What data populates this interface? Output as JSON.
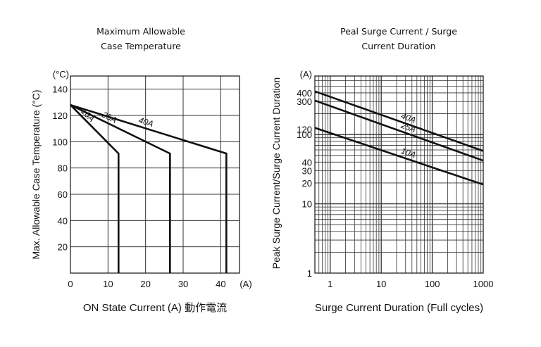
{
  "charts": [
    {
      "title_line1": "Maximum Allowable",
      "title_line2": "Case Temperature",
      "ylabel": "Max. Allowable Case Temperature (°C)",
      "xlabel": "ON State Current (A)  動作電流",
      "y_unit": "(°C)",
      "x_unit": "(A)"
    },
    {
      "title_line1": "Peal Surge Current / Surge",
      "title_line2": "Current Duration",
      "ylabel": "Peak Surge Current/Surge Current Duration",
      "xlabel": "Surge Current Duration (Full cycles)",
      "y_unit": "(A)"
    }
  ],
  "chart_data": [
    {
      "type": "line",
      "title": "Maximum Allowable Case Temperature",
      "xlabel": "ON State Current (A)  動作電流",
      "ylabel": "Max. Allowable Case Temperature (°C)",
      "xlim": [
        0,
        45
      ],
      "ylim": [
        0,
        150
      ],
      "x_ticks": [
        0,
        10,
        20,
        30,
        40
      ],
      "y_ticks": [
        20,
        40,
        60,
        80,
        100,
        120,
        140
      ],
      "grid": true,
      "series": [
        {
          "name": "10A",
          "x": [
            0,
            12.8,
            12.8
          ],
          "y": [
            128,
            91,
            0
          ]
        },
        {
          "name": "25A",
          "x": [
            0,
            26.5,
            26.5
          ],
          "y": [
            128,
            91,
            0
          ]
        },
        {
          "name": "40A",
          "x": [
            0,
            41.5,
            41.5
          ],
          "y": [
            128,
            91,
            0
          ]
        }
      ]
    },
    {
      "type": "line",
      "title": "Peal Surge Current / Surge Current Duration",
      "xlabel": "Surge Current Duration (Full cycles)",
      "ylabel": "Peak Surge Current/Surge Current Duration",
      "x_scale": "log",
      "y_scale": "log",
      "xlim": [
        0.5,
        1000
      ],
      "ylim": [
        1,
        700
      ],
      "x_ticks": [
        1,
        10,
        100,
        1000
      ],
      "y_ticks": [
        1,
        10,
        20,
        30,
        40,
        100,
        120,
        300,
        400
      ],
      "grid": true,
      "series": [
        {
          "name": "40A",
          "x": [
            0.5,
            1000
          ],
          "y": [
            420,
            58
          ]
        },
        {
          "name": "25A",
          "x": [
            0.5,
            1000
          ],
          "y": [
            310,
            42
          ]
        },
        {
          "name": "10A",
          "x": [
            0.5,
            1000
          ],
          "y": [
            125,
            19
          ]
        }
      ]
    }
  ]
}
